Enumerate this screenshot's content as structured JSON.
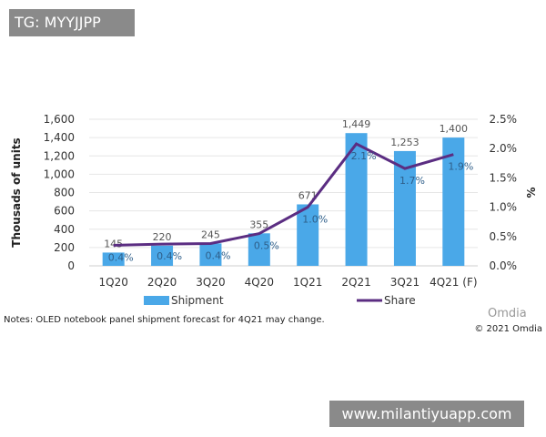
{
  "watermarks": {
    "top_left": "TG: MYYJJPP",
    "bottom_right": "www.milantiyuapp.com"
  },
  "chart_data": {
    "type": "bar+line",
    "categories": [
      "1Q20",
      "2Q20",
      "3Q20",
      "4Q20",
      "1Q21",
      "2Q21",
      "3Q21",
      "4Q21 (F)"
    ],
    "series": [
      {
        "name": "Shipment",
        "type": "bar",
        "axis": "left",
        "color": "#4aa8e8",
        "values": [
          145,
          220,
          245,
          355,
          671,
          1449,
          1253,
          1400
        ],
        "labels": [
          "145",
          "220",
          "245",
          "355",
          "671",
          "1,449",
          "1,253",
          "1,400"
        ]
      },
      {
        "name": "Share",
        "type": "line",
        "axis": "right",
        "color": "#5b2d82",
        "values": [
          0.35,
          0.37,
          0.38,
          0.55,
          1.0,
          2.08,
          1.66,
          1.9
        ],
        "labels": [
          "0.4%",
          "0.4%",
          "0.4%",
          "0.5%",
          "1.0%",
          "2.1%",
          "1.7%",
          "1.9%"
        ]
      }
    ],
    "ylabel": "Thousads of units",
    "ylabel_right": "%",
    "ylim": [
      0,
      1600
    ],
    "yticks": [
      "0",
      "200",
      "400",
      "600",
      "800",
      "1,000",
      "1,200",
      "1,400",
      "1,600"
    ],
    "ylim_right": [
      0,
      2.5
    ],
    "yticks_right": [
      "0.0%",
      "0.5%",
      "1.0%",
      "1.5%",
      "2.0%",
      "2.5%"
    ],
    "grid": true,
    "legend_placement": "bottom",
    "note": "Notes: OLED notebook panel shipment forecast for 4Q21 may change.",
    "source_logo": "Omdia",
    "copyright": "© 2021 Omdia"
  }
}
